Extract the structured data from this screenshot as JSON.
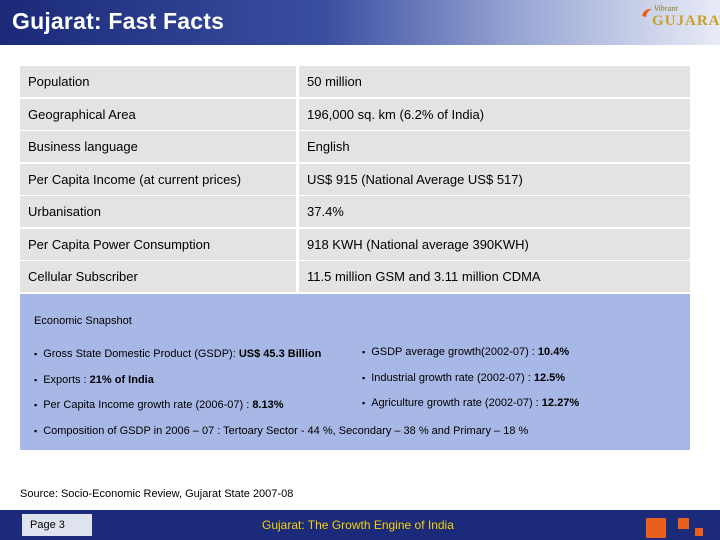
{
  "header": {
    "title": "Gujarat: Fast Facts"
  },
  "logo": {
    "tagline": "Vibrant",
    "word": "GUJARAT"
  },
  "facts": [
    {
      "label": "Population",
      "value": "50 million"
    },
    {
      "label": "Geographical Area",
      "value": "196,000 sq. km (6.2% of India)"
    },
    {
      "label": "Business language",
      "value": "English"
    },
    {
      "label": "Per Capita Income (at current prices)",
      "value": "US$ 915 (National Average US$ 517)"
    },
    {
      "label": "Urbanisation",
      "value": "37.4%"
    },
    {
      "label": "Per Capita Power Consumption",
      "value": "918 KWH (National average 390KWH)"
    },
    {
      "label": "Cellular Subscriber",
      "value": "11.5 million GSM and 3.11 million CDMA"
    }
  ],
  "snapshot": {
    "title": "Economic Snapshot",
    "gsdp_label": "Gross State Domestic Product (GSDP): ",
    "gsdp_value": "US$ 45.3  Billion",
    "growth_label": "GSDP average growth(2002-07) : ",
    "growth_value": "10.4%",
    "exports_label": "Exports : ",
    "exports_value": "21% of India",
    "industrial_label": "Industrial growth rate (2002-07)   : ",
    "industrial_value": "12.5%",
    "pci_label": "Per Capita Income growth rate (2006-07) : ",
    "pci_value": "8.13%",
    "agri_label": "Agriculture growth rate (2002-07) : ",
    "agri_value": "12.27%",
    "composition": "Composition of GSDP in 2006 – 07 : Tertoary Sector - 44 %, Secondary – 38 % and Primary – 18 %"
  },
  "source": "Source: Socio-Economic Review, Gujarat State 2007-08",
  "footer": {
    "page_label": "Page 3",
    "tagline": "Gujarat: The Growth Engine of India"
  },
  "colors": {
    "header": "#1a2a78",
    "snapshot": "#a8b8e6",
    "footer": "#1c2a7a",
    "tagline": "#f5d20a",
    "accent": "#e8601c"
  }
}
